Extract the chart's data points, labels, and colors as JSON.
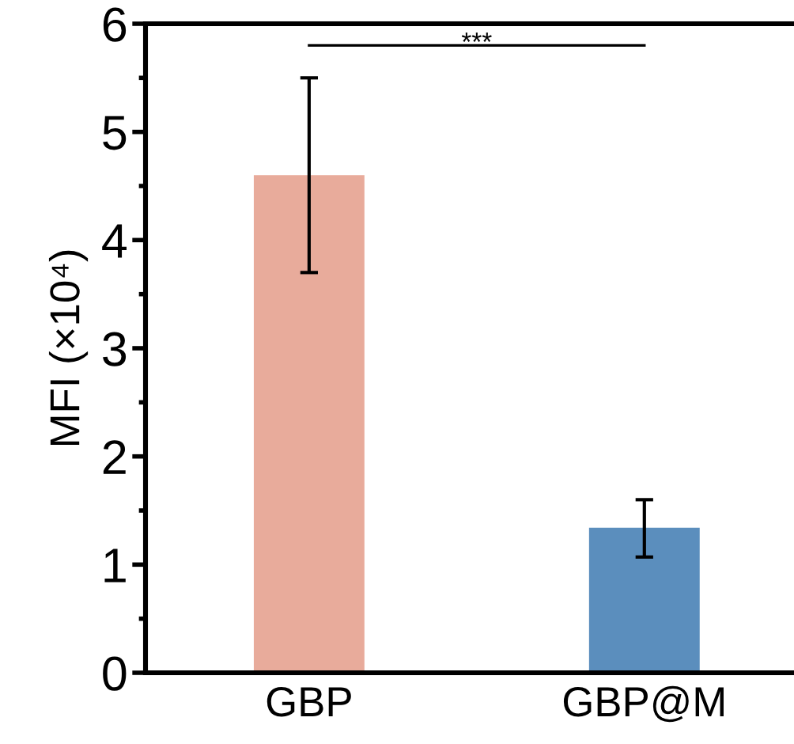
{
  "chart_data": {
    "type": "bar",
    "ylabel": "MFI (×10⁴)",
    "categories": [
      "GBP",
      "GBP@M"
    ],
    "values": [
      4.6,
      1.34
    ],
    "colors": [
      "#e8ab9b",
      "#5b8ebd"
    ],
    "errors": [
      [
        3.7,
        5.5
      ],
      [
        1.07,
        1.6
      ]
    ],
    "ylim": [
      0,
      6
    ],
    "yticks": [
      0,
      1,
      2,
      3,
      4,
      5,
      6
    ],
    "annotations": [
      "***"
    ],
    "grid": false,
    "legend": false
  }
}
